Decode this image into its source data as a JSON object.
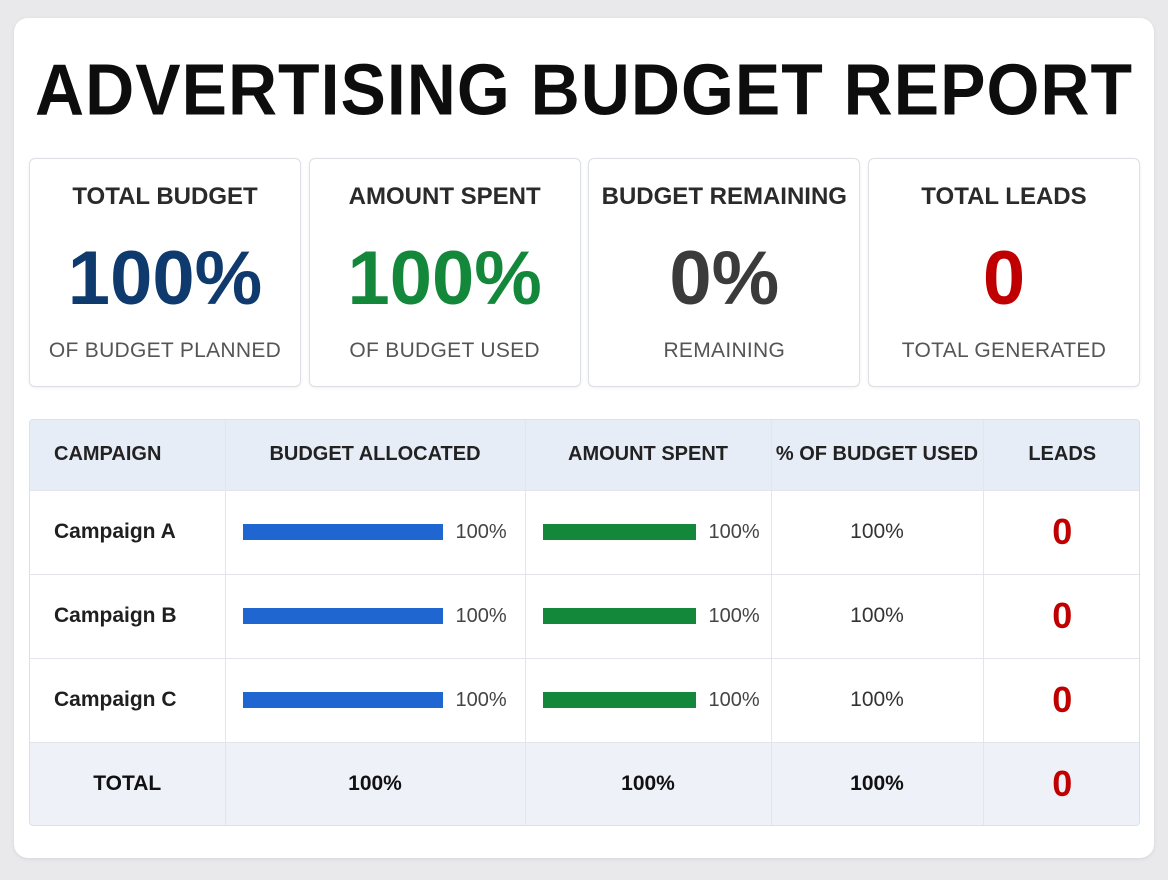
{
  "title": "ADVERTISING BUDGET REPORT",
  "colors": {
    "navy": "#0e3a6e",
    "green": "#14883a",
    "gray": "#3b3b3b",
    "red": "#c00000",
    "bar_blue": "#1f66d1",
    "bar_green": "#14883a"
  },
  "cards": [
    {
      "label": "TOTAL BUDGET",
      "value": "100%",
      "sub": "OF BUDGET PLANNED",
      "color": "#0e3a6e"
    },
    {
      "label": "AMOUNT SPENT",
      "value": "100%",
      "sub": "OF BUDGET USED",
      "color": "#14883a"
    },
    {
      "label": "BUDGET REMAINING",
      "value": "0%",
      "sub": "REMAINING",
      "color": "#3b3b3b"
    },
    {
      "label": "TOTAL LEADS",
      "value": "0",
      "sub": "TOTAL GENERATED",
      "color": "#c00000"
    }
  ],
  "table": {
    "headers": [
      "CAMPAIGN",
      "BUDGET ALLOCATED",
      "AMOUNT SPENT",
      "% OF BUDGET USED",
      "LEADS"
    ],
    "rows": [
      {
        "name": "Campaign A",
        "allocated_label": "100%",
        "allocated_fraction": 1.0,
        "spent_label": "100%",
        "spent_fraction": 1.0,
        "pct_used": "100%",
        "leads": "0"
      },
      {
        "name": "Campaign B",
        "allocated_label": "100%",
        "allocated_fraction": 1.0,
        "spent_label": "100%",
        "spent_fraction": 1.0,
        "pct_used": "100%",
        "leads": "0"
      },
      {
        "name": "Campaign C",
        "allocated_label": "100%",
        "allocated_fraction": 1.0,
        "spent_label": "100%",
        "spent_fraction": 1.0,
        "pct_used": "100%",
        "leads": "0"
      }
    ],
    "total": {
      "name": "TOTAL",
      "allocated": "100%",
      "spent": "100%",
      "pct_used": "100%",
      "leads": "0"
    }
  }
}
